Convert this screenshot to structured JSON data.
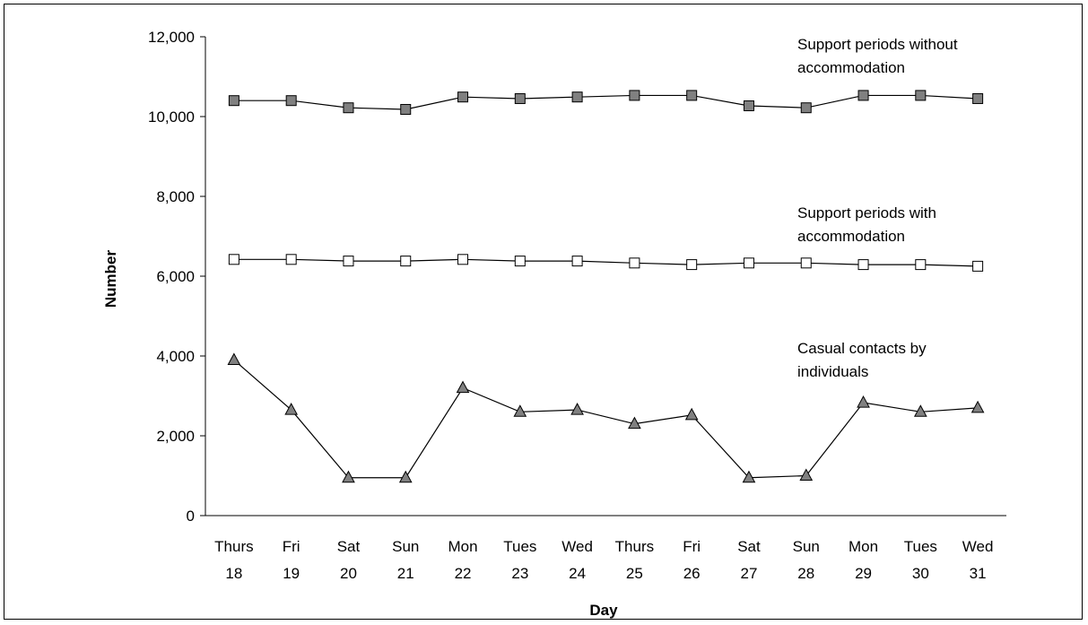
{
  "chart_data": {
    "type": "line",
    "title": "",
    "xlabel": "Day",
    "ylabel": "Number",
    "ylim": [
      0,
      12000
    ],
    "yticks": [
      0,
      2000,
      4000,
      6000,
      8000,
      10000,
      12000
    ],
    "ytick_labels": [
      "0",
      "2,000",
      "4,000",
      "6,000",
      "8,000",
      "10,000",
      "12,000"
    ],
    "categories": [
      [
        "Thurs",
        "18"
      ],
      [
        "Fri",
        "19"
      ],
      [
        "Sat",
        "20"
      ],
      [
        "Sun",
        "21"
      ],
      [
        "Mon",
        "22"
      ],
      [
        "Tues",
        "23"
      ],
      [
        "Wed",
        "24"
      ],
      [
        "Thurs",
        "25"
      ],
      [
        "Fri",
        "26"
      ],
      [
        "Sat",
        "27"
      ],
      [
        "Sun",
        "28"
      ],
      [
        "Mon",
        "29"
      ],
      [
        "Tues",
        "30"
      ],
      [
        "Wed",
        "31"
      ]
    ],
    "grid": false,
    "legend": "none",
    "series": [
      {
        "name": "Support periods without accommodation",
        "label_lines": [
          "Support periods without",
          "accommodation"
        ],
        "marker": "square-filled",
        "values": [
          10400,
          10400,
          10220,
          10180,
          10490,
          10450,
          10490,
          10530,
          10530,
          10270,
          10220,
          10530,
          10530,
          10450
        ]
      },
      {
        "name": "Support periods with accommodation",
        "label_lines": [
          "Support periods with",
          "accommodation"
        ],
        "marker": "square-open",
        "values": [
          6420,
          6420,
          6380,
          6380,
          6420,
          6380,
          6380,
          6330,
          6290,
          6330,
          6330,
          6290,
          6290,
          6250
        ]
      },
      {
        "name": "Casual contacts by individuals",
        "label_lines": [
          "Casual contacts by",
          "individuals"
        ],
        "marker": "triangle-filled",
        "values": [
          3900,
          2650,
          950,
          950,
          3200,
          2600,
          2650,
          2300,
          2520,
          950,
          1000,
          2830,
          2600,
          2700
        ]
      }
    ],
    "colors": {
      "line": "#000000",
      "marker_fill_dark": "#808080",
      "marker_fill_open": "#ffffff"
    }
  }
}
